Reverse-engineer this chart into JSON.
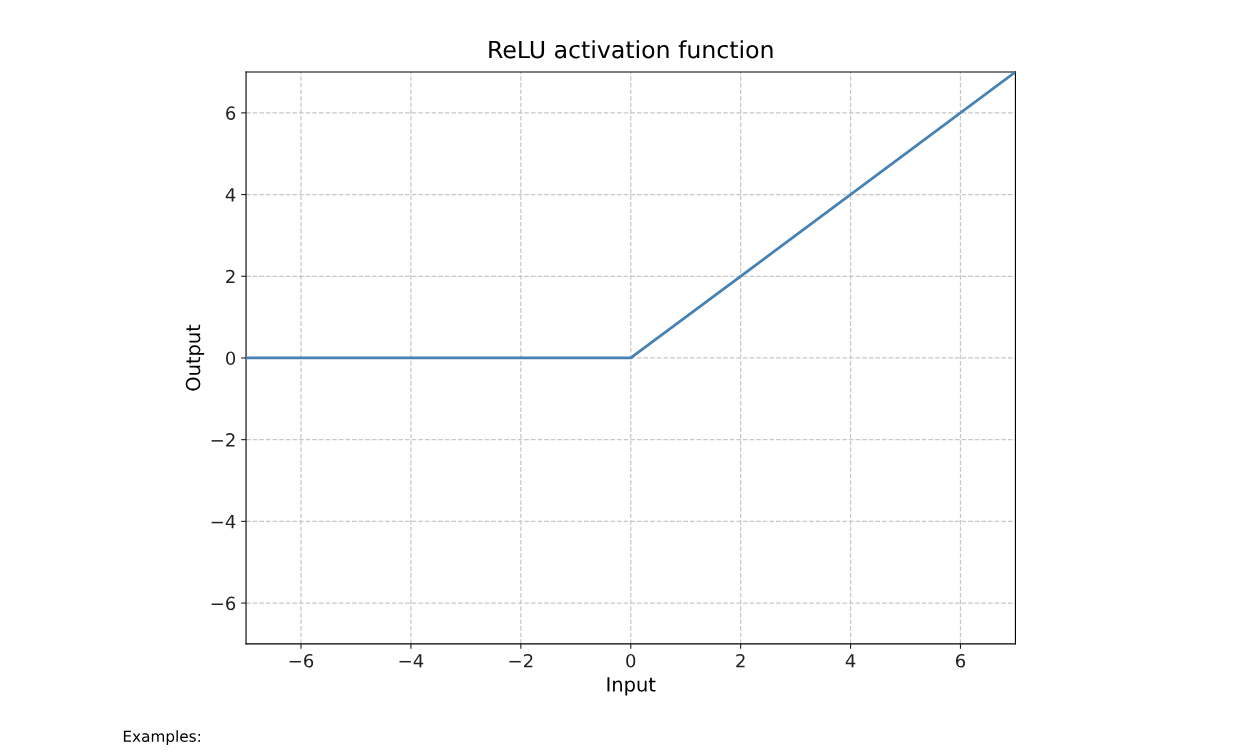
{
  "chart_data": {
    "type": "line",
    "title": "ReLU activation function",
    "xlabel": "Input",
    "ylabel": "Output",
    "x": [
      -7,
      0,
      7
    ],
    "series": [
      {
        "color": "#4682b4",
        "values": [
          0,
          0,
          7
        ]
      }
    ],
    "xlim": [
      -7,
      7
    ],
    "ylim": [
      -7,
      7
    ],
    "xticks": [
      {
        "value": -6,
        "label": "−6"
      },
      {
        "value": -4,
        "label": "−4"
      },
      {
        "value": -2,
        "label": "−2"
      },
      0,
      2,
      4,
      6
    ],
    "yticks": [
      {
        "value": -6,
        "label": "−6"
      },
      {
        "value": -4,
        "label": "−4"
      },
      {
        "value": -2,
        "label": "−2"
      },
      0,
      2,
      4,
      6
    ],
    "grid": true,
    "annotations": [
      "Examples:"
    ]
  }
}
